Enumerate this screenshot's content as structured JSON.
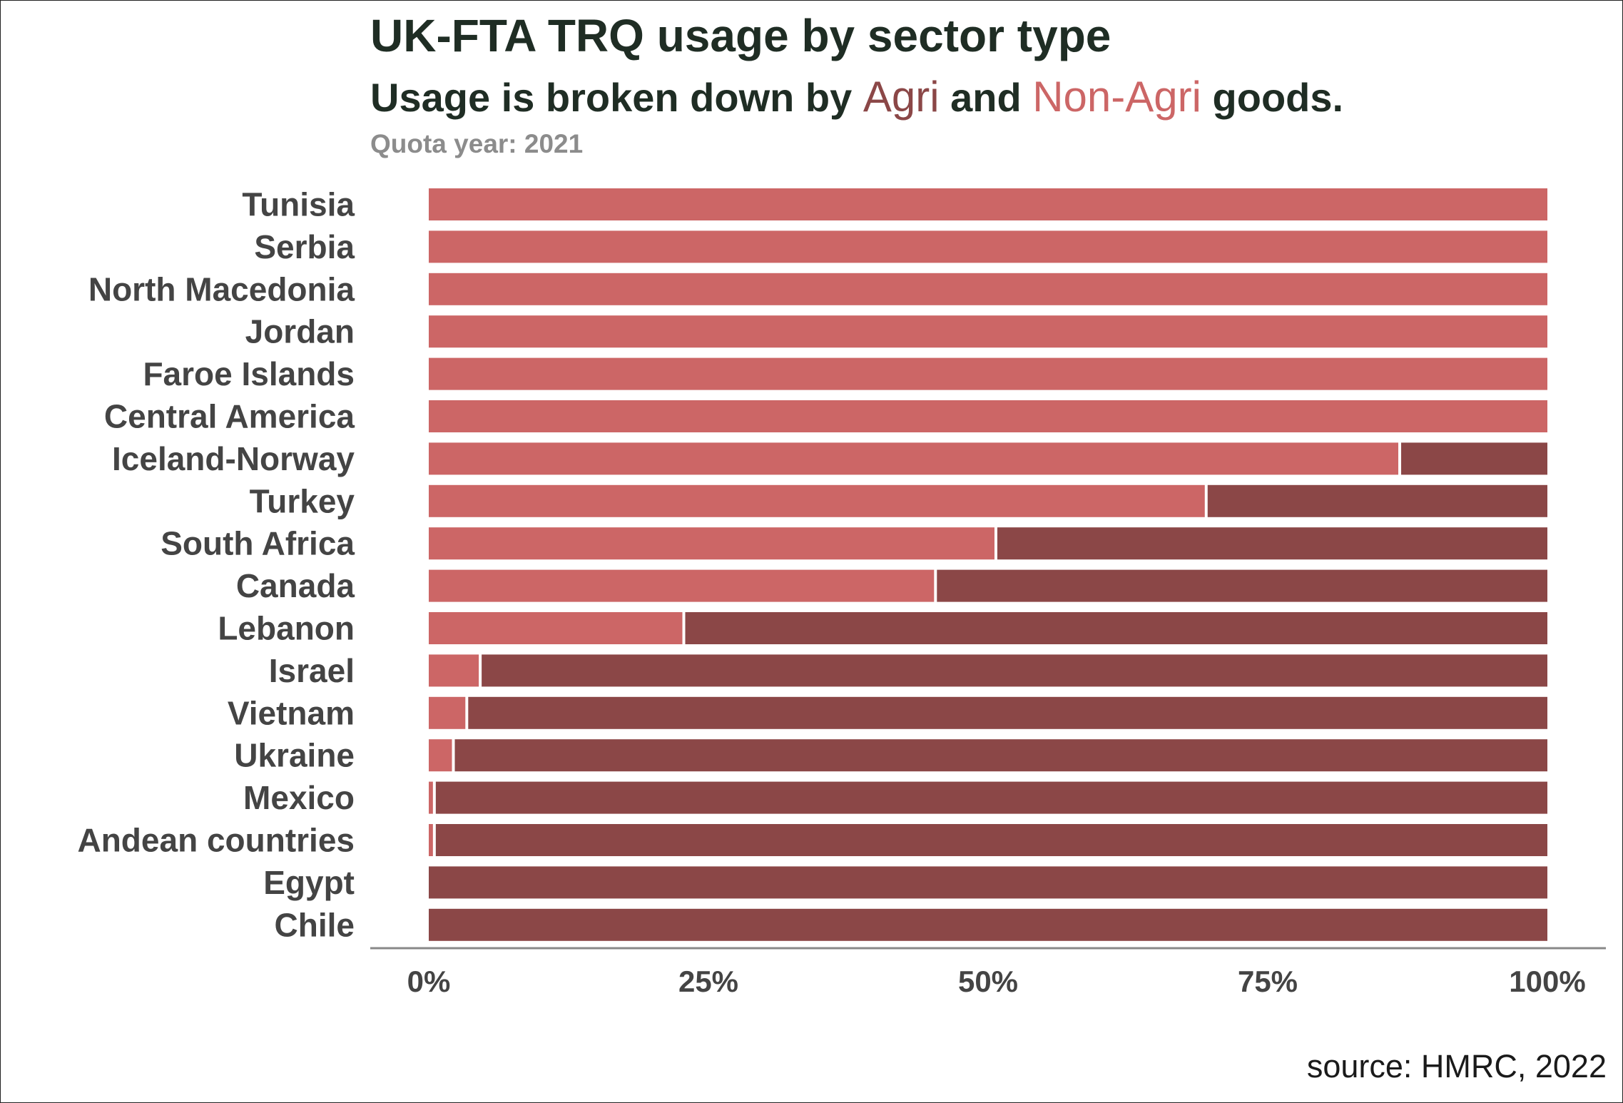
{
  "title": "UK-FTA TRQ usage by sector type",
  "subtitle": {
    "prefix": "Usage is broken down by",
    "agri": "Agri",
    "middle": "and",
    "non_agri": "Non-Agri",
    "suffix": "goods."
  },
  "caption": "Quota year: 2021",
  "source": "source: HMRC, 2022",
  "colors": {
    "agri": "#8b4747",
    "non_agri": "#cc6666",
    "axis": "#888888",
    "text": "#444444",
    "title": "#1f2d24"
  },
  "chart_data": {
    "type": "bar",
    "orientation": "horizontal",
    "stacked": true,
    "categories": [
      "Tunisia",
      "Serbia",
      "North Macedonia",
      "Jordan",
      "Faroe Islands",
      "Central America",
      "Iceland-Norway",
      "Turkey",
      "South Africa",
      "Canada",
      "Lebanon",
      "Israel",
      "Vietnam",
      "Ukraine",
      "Mexico",
      "Andean countries",
      "Egypt",
      "Chile"
    ],
    "series": [
      {
        "name": "Non-Agri",
        "values": [
          100,
          100,
          100,
          100,
          100,
          100,
          86.8,
          69.5,
          50.7,
          45.3,
          22.8,
          4.6,
          3.4,
          2.2,
          0.5,
          0.5,
          0,
          0
        ]
      },
      {
        "name": "Agri",
        "values": [
          0,
          0,
          0,
          0,
          0,
          0,
          13.2,
          30.5,
          49.3,
          54.7,
          77.2,
          95.4,
          96.6,
          97.8,
          99.5,
          99.5,
          100,
          100
        ]
      }
    ],
    "x_ticks": [
      "0%",
      "25%",
      "50%",
      "75%",
      "100%"
    ],
    "xlim": [
      0,
      100
    ],
    "grid": false,
    "legend": "none (colour key in subtitle)"
  }
}
